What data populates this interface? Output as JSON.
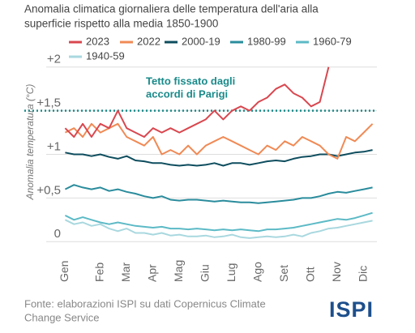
{
  "chart_data": {
    "type": "line",
    "title": [
      "Anomalia climatica giornaliera delle temperatura dell'aria alla",
      "superficie rispetto alla media 1850-1900"
    ],
    "ylabel": "Anomalia temperatura (°C)",
    "categories": [
      "Gen",
      null,
      null,
      null,
      "Feb",
      null,
      null,
      "Mar",
      null,
      null,
      "Apr",
      null,
      null,
      "Mag",
      null,
      null,
      "Giu",
      null,
      null,
      "Lug",
      null,
      null,
      "Ago",
      null,
      null,
      "Set",
      null,
      null,
      "Ott",
      null,
      null,
      "Nov",
      null,
      null,
      "Dic",
      null
    ],
    "series": [
      {
        "name": "2023",
        "color": "#d9474f",
        "values": [
          1.3,
          1.2,
          1.35,
          1.2,
          1.35,
          1.3,
          1.5,
          1.3,
          1.25,
          1.2,
          1.3,
          1.25,
          1.3,
          1.25,
          1.3,
          1.35,
          1.4,
          1.5,
          1.4,
          1.5,
          1.55,
          1.5,
          1.6,
          1.65,
          1.75,
          1.8,
          1.7,
          1.65,
          1.55,
          1.6,
          2.0,
          null,
          null,
          null,
          null,
          null
        ]
      },
      {
        "name": "2022",
        "color": "#f08a55",
        "values": [
          1.25,
          1.3,
          1.2,
          1.35,
          1.25,
          1.3,
          1.35,
          1.2,
          1.15,
          1.1,
          1.2,
          1.0,
          1.05,
          1.0,
          1.1,
          1.0,
          1.1,
          1.15,
          1.2,
          1.15,
          1.1,
          1.05,
          1.0,
          1.1,
          1.05,
          1.15,
          1.1,
          1.2,
          1.15,
          1.1,
          1.0,
          0.95,
          1.2,
          1.15,
          1.25,
          1.35
        ]
      },
      {
        "name": "2000-19",
        "color": "#0e4d5e",
        "values": [
          1.02,
          1.0,
          1.0,
          0.98,
          1.0,
          0.97,
          0.95,
          0.98,
          0.93,
          0.92,
          0.9,
          0.9,
          0.88,
          0.87,
          0.88,
          0.87,
          0.88,
          0.9,
          0.87,
          0.9,
          0.9,
          0.88,
          0.9,
          0.92,
          0.93,
          0.92,
          0.95,
          0.97,
          0.98,
          1.0,
          1.0,
          0.98,
          1.0,
          1.02,
          1.03,
          1.05
        ]
      },
      {
        "name": "1980-99",
        "color": "#2a8c9c",
        "values": [
          0.6,
          0.65,
          0.62,
          0.6,
          0.62,
          0.58,
          0.6,
          0.57,
          0.55,
          0.52,
          0.5,
          0.52,
          0.48,
          0.47,
          0.48,
          0.48,
          0.47,
          0.46,
          0.47,
          0.46,
          0.45,
          0.45,
          0.44,
          0.45,
          0.46,
          0.47,
          0.48,
          0.5,
          0.5,
          0.52,
          0.55,
          0.57,
          0.56,
          0.58,
          0.6,
          0.62
        ]
      },
      {
        "name": "1960-79",
        "color": "#5cbac6",
        "values": [
          0.3,
          0.25,
          0.28,
          0.25,
          0.22,
          0.2,
          0.22,
          0.2,
          0.18,
          0.17,
          0.16,
          0.17,
          0.15,
          0.15,
          0.14,
          0.15,
          0.14,
          0.13,
          0.14,
          0.13,
          0.14,
          0.13,
          0.12,
          0.14,
          0.14,
          0.15,
          0.16,
          0.18,
          0.2,
          0.22,
          0.24,
          0.26,
          0.25,
          0.27,
          0.3,
          0.33
        ]
      },
      {
        "name": "1940-59",
        "color": "#a9d8df",
        "values": [
          0.25,
          0.2,
          0.22,
          0.18,
          0.2,
          0.15,
          0.12,
          0.15,
          0.1,
          0.1,
          0.08,
          0.1,
          0.07,
          0.08,
          0.06,
          0.06,
          0.07,
          0.05,
          0.06,
          0.08,
          0.05,
          0.04,
          0.05,
          0.06,
          0.05,
          0.06,
          0.08,
          0.06,
          0.1,
          0.12,
          0.15,
          0.16,
          0.18,
          0.2,
          0.22,
          0.24
        ]
      }
    ],
    "ylim": [
      -0.1,
      2.1
    ],
    "yticks": [
      0,
      {
        "value": 0.5,
        "label": "+0,5"
      },
      {
        "value": 1,
        "label": "+1"
      },
      {
        "value": 1.5,
        "label": "+1,5"
      },
      {
        "value": 2,
        "label": "+2"
      }
    ],
    "grid": true,
    "threshold": {
      "value": 1.5,
      "color": "#1a8a8a",
      "label": [
        "Tetto fissato dagli",
        "accordi di Parigi"
      ]
    }
  },
  "source": [
    "Fonte: elaborazioni ISPI su dati Copernicus Climate",
    "Change Service"
  ],
  "logo": "ISPI"
}
